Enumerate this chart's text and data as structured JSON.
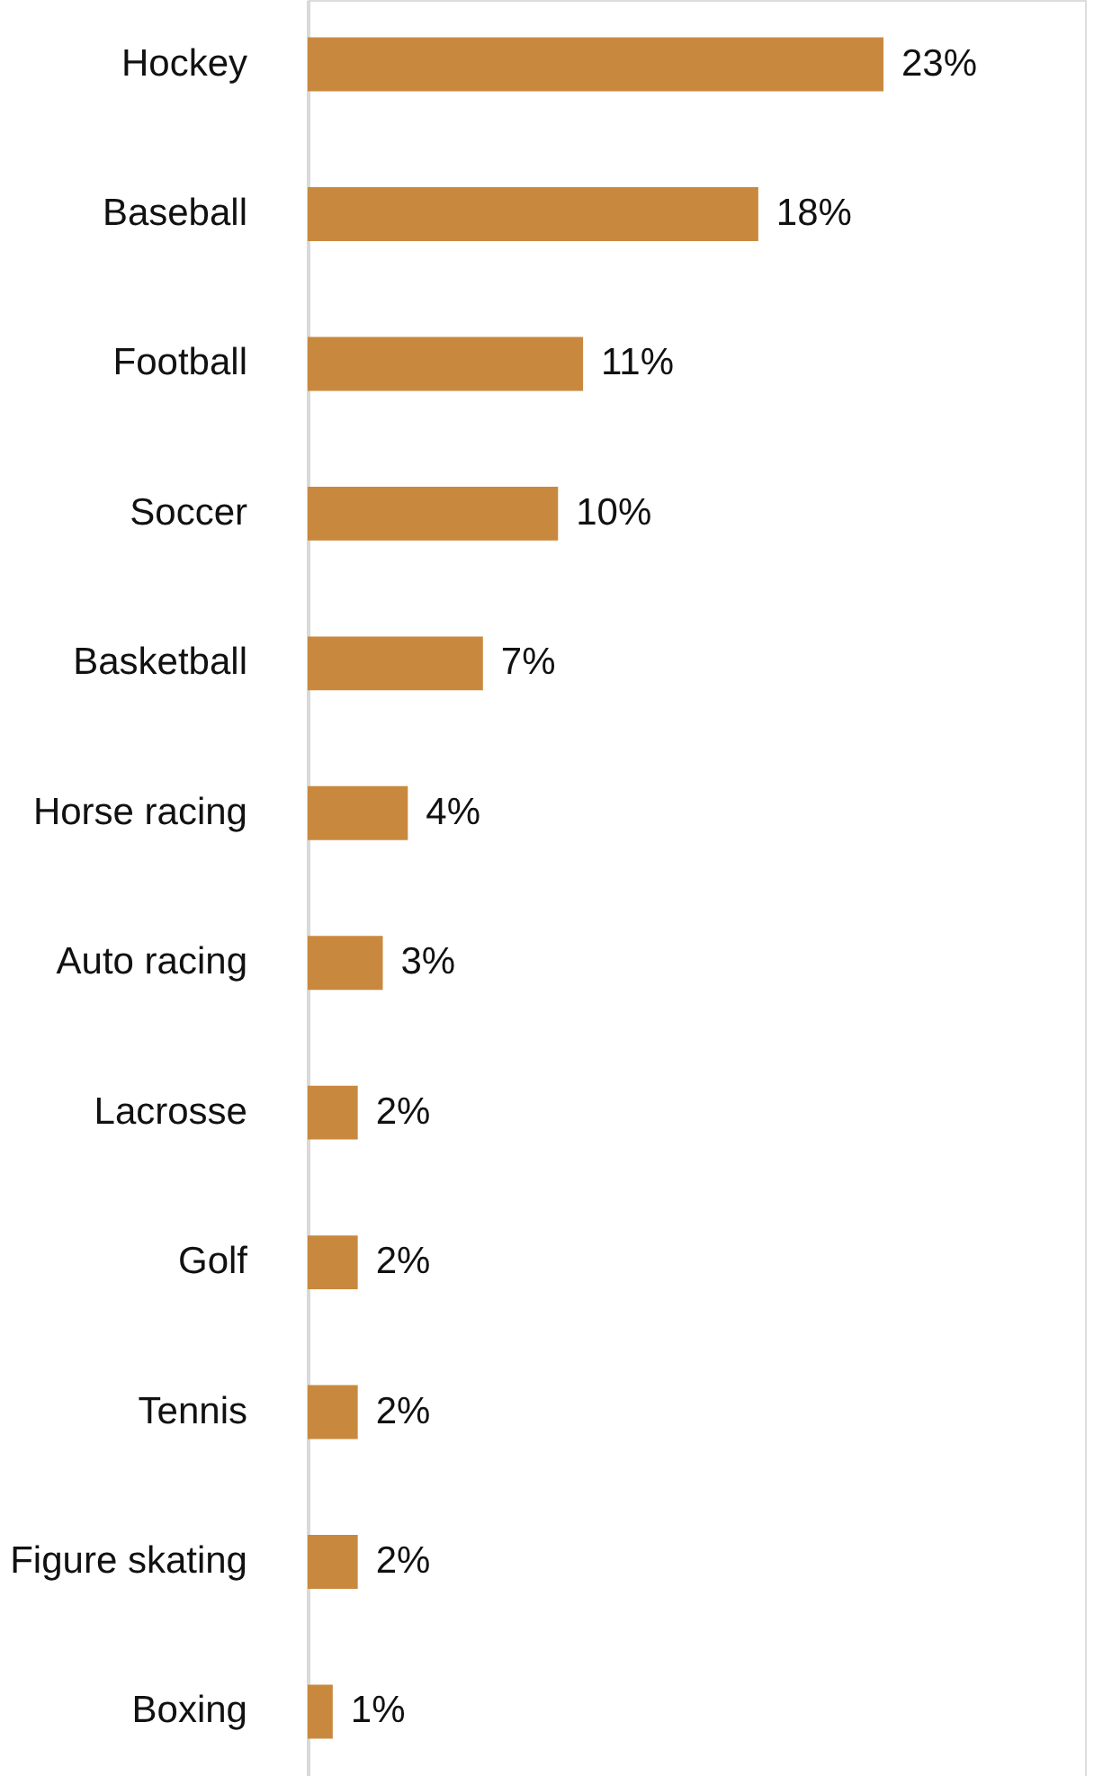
{
  "chart_data": {
    "type": "bar",
    "orientation": "horizontal",
    "categories": [
      "Hockey",
      "Baseball",
      "Football",
      "Soccer",
      "Basketball",
      "Horse racing",
      "Auto racing",
      "Lacrosse",
      "Golf",
      "Tennis",
      "Figure skating",
      "Boxing"
    ],
    "values": [
      23,
      18,
      11,
      10,
      7,
      4,
      3,
      2,
      2,
      2,
      2,
      1
    ],
    "value_labels": [
      "23%",
      "18%",
      "11%",
      "10%",
      "7%",
      "4%",
      "3%",
      "2%",
      "2%",
      "2%",
      "2%",
      "1%"
    ],
    "color": "#c8893f"
  }
}
